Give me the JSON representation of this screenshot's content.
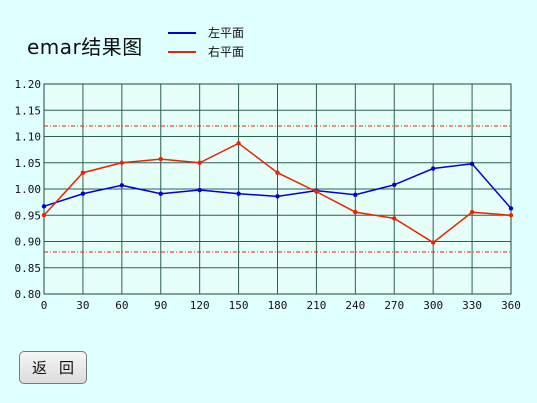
{
  "chart_data": {
    "type": "line",
    "title": "emar结果图",
    "x": [
      0,
      30,
      60,
      90,
      120,
      150,
      180,
      210,
      240,
      270,
      300,
      330,
      360
    ],
    "xlim": [
      0,
      360
    ],
    "ylim": [
      0.8,
      1.2
    ],
    "x_ticks": [
      "0",
      "30",
      "60",
      "90",
      "120",
      "150",
      "180",
      "210",
      "240",
      "270",
      "300",
      "330",
      "360"
    ],
    "y_ticks": [
      "0.80",
      "0.85",
      "0.90",
      "0.95",
      "1.00",
      "1.05",
      "1.10",
      "1.15",
      "1.20"
    ],
    "y_tick_values": [
      0.8,
      0.85,
      0.9,
      0.95,
      1.0,
      1.05,
      1.1,
      1.15,
      1.2
    ],
    "grid": true,
    "legend": "top",
    "series": [
      {
        "name": "左平面",
        "color": "#0000dd",
        "values": [
          0.967,
          0.991,
          1.007,
          0.991,
          0.998,
          0.991,
          0.986,
          0.997,
          0.989,
          1.008,
          1.039,
          1.048,
          0.963
        ]
      },
      {
        "name": "右平面",
        "color": "#ee2200",
        "values": [
          0.95,
          1.031,
          1.05,
          1.057,
          1.05,
          1.087,
          1.031,
          0.995,
          0.956,
          0.944,
          0.898,
          0.956,
          0.95
        ]
      }
    ],
    "reference_lines": [
      1.12,
      0.88
    ],
    "reference_color": "#ee2200"
  },
  "back_button": {
    "label": "返回"
  }
}
